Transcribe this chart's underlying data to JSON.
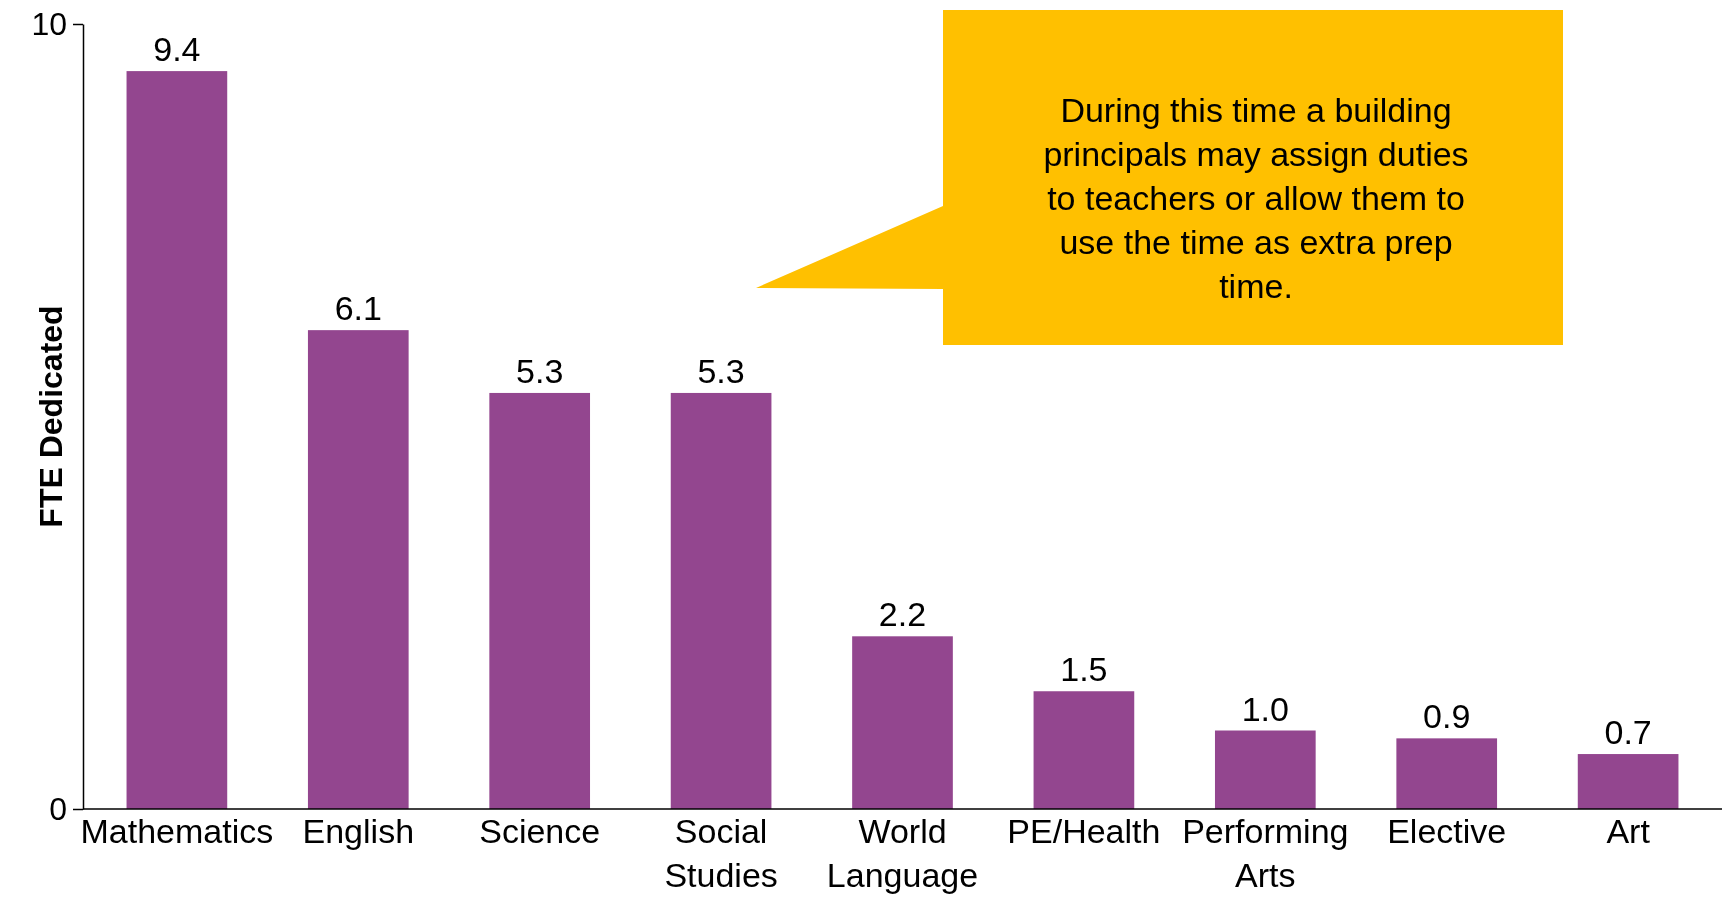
{
  "chart_data": {
    "type": "bar",
    "ylabel": "FTE Dedicated",
    "categories": [
      "Mathematics",
      "English",
      "Science",
      "Social Studies",
      "World Language",
      "PE/Health",
      "Performing Arts",
      "Elective",
      "Art"
    ],
    "values": [
      9.4,
      6.1,
      5.3,
      5.3,
      2.2,
      1.5,
      1.0,
      0.9,
      0.7
    ],
    "value_labels": [
      "9.4",
      "6.1",
      "5.3",
      "5.3",
      "2.2",
      "1.5",
      "1.0",
      "0.9",
      "0.7"
    ],
    "color": "#93468f",
    "ylim": [
      0,
      10
    ],
    "yticks": [
      0,
      10
    ],
    "grid": false,
    "annotations": [
      "During this time a building principals may assign duties to teachers or allow them to use the time as extra prep time."
    ]
  }
}
